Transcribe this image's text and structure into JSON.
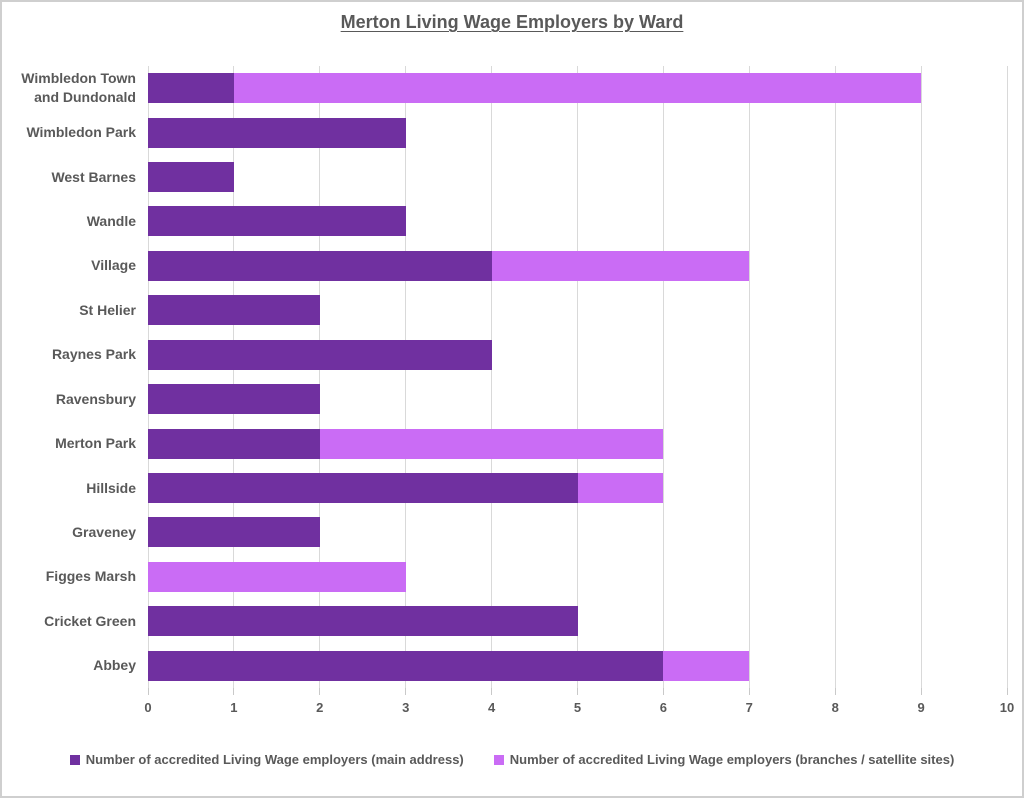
{
  "title": "Merton Living Wage Employers by Ward",
  "chart_data": {
    "type": "bar",
    "orientation": "horizontal",
    "stacked": true,
    "title": "Merton Living Wage Employers by Ward",
    "categories": [
      "Wimbledon Town and Dundonald",
      "Wimbledon Park",
      "West Barnes",
      "Wandle",
      "Village",
      "St Helier",
      "Raynes Park",
      "Ravensbury",
      "Merton Park",
      "Hillside",
      "Graveney",
      "Figges Marsh",
      "Cricket Green",
      "Abbey"
    ],
    "series": [
      {
        "name": "Number of accredited Living Wage employers (main address)",
        "color": "#7030A0",
        "values": [
          1,
          3,
          1,
          3,
          4,
          2,
          4,
          2,
          2,
          5,
          2,
          0,
          5,
          6
        ]
      },
      {
        "name": "Number of accredited Living Wage employers (branches / satellite sites)",
        "color": "#CA6CF5",
        "values": [
          8,
          0,
          0,
          0,
          3,
          0,
          0,
          0,
          4,
          1,
          0,
          3,
          0,
          1
        ]
      }
    ],
    "stacked_totals": [
      9,
      3,
      1,
      3,
      7,
      2,
      4,
      2,
      6,
      6,
      2,
      3,
      5,
      7
    ],
    "xlim": [
      0,
      10
    ],
    "x_ticks": [
      "0",
      "1",
      "2",
      "3",
      "4",
      "5",
      "6",
      "7",
      "8",
      "9",
      "10"
    ],
    "grid": true,
    "legend_position": "bottom"
  },
  "colors": {
    "main_series": "#7030A0",
    "branches_series": "#CA6CF5",
    "gridline": "#d9d9d9",
    "text": "#595959",
    "background": "#ffffff",
    "border": "#cfcfcf"
  }
}
